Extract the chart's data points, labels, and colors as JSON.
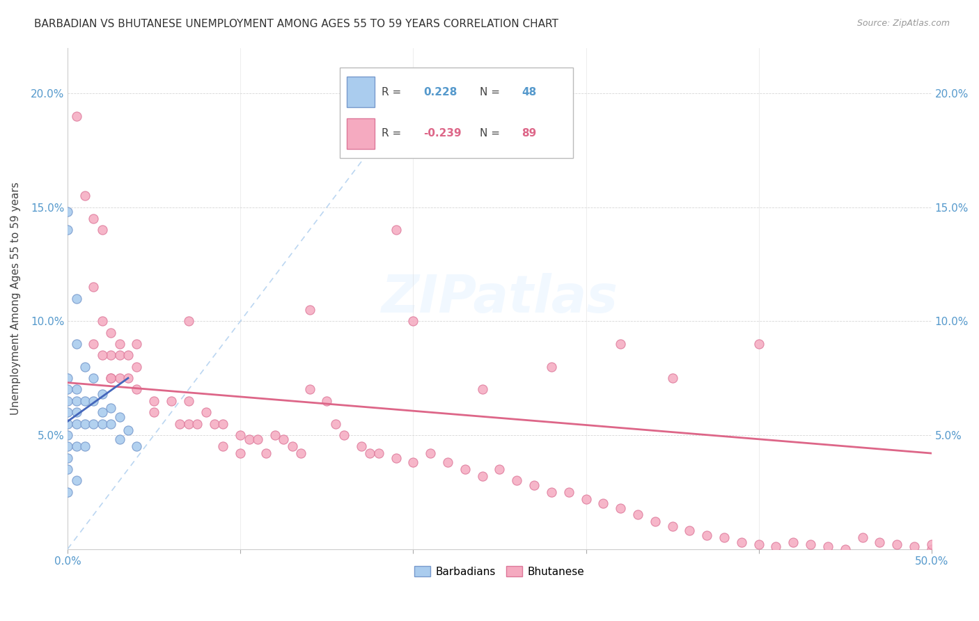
{
  "title": "BARBADIAN VS BHUTANESE UNEMPLOYMENT AMONG AGES 55 TO 59 YEARS CORRELATION CHART",
  "source": "Source: ZipAtlas.com",
  "ylabel": "Unemployment Among Ages 55 to 59 years",
  "xlim": [
    0,
    0.5
  ],
  "ylim": [
    0,
    0.22
  ],
  "barbadian_color": "#aaccee",
  "barbadian_edge": "#7799cc",
  "bhutanese_color": "#f5aac0",
  "bhutanese_edge": "#dd7799",
  "barbadian_line_color": "#4466bb",
  "bhutanese_line_color": "#dd6688",
  "watermark": "ZIPatlas",
  "background_color": "#ffffff",
  "barbadian_x": [
    0.0,
    0.0,
    0.0,
    0.0,
    0.0,
    0.0,
    0.0,
    0.0,
    0.0,
    0.0,
    0.0,
    0.0,
    0.005,
    0.005,
    0.005,
    0.005,
    0.005,
    0.005,
    0.005,
    0.005,
    0.01,
    0.01,
    0.01,
    0.01,
    0.015,
    0.015,
    0.015,
    0.02,
    0.02,
    0.02,
    0.025,
    0.025,
    0.03,
    0.03,
    0.035,
    0.04
  ],
  "barbadian_y": [
    0.148,
    0.14,
    0.075,
    0.07,
    0.065,
    0.06,
    0.055,
    0.05,
    0.045,
    0.04,
    0.035,
    0.025,
    0.11,
    0.09,
    0.07,
    0.065,
    0.06,
    0.055,
    0.045,
    0.03,
    0.08,
    0.065,
    0.055,
    0.045,
    0.075,
    0.065,
    0.055,
    0.068,
    0.06,
    0.055,
    0.062,
    0.055,
    0.058,
    0.048,
    0.052,
    0.045
  ],
  "bhutanese_x": [
    0.005,
    0.01,
    0.015,
    0.015,
    0.02,
    0.02,
    0.025,
    0.025,
    0.025,
    0.03,
    0.03,
    0.03,
    0.035,
    0.035,
    0.04,
    0.04,
    0.04,
    0.05,
    0.05,
    0.06,
    0.065,
    0.07,
    0.07,
    0.075,
    0.08,
    0.085,
    0.09,
    0.09,
    0.1,
    0.1,
    0.105,
    0.11,
    0.115,
    0.12,
    0.125,
    0.13,
    0.135,
    0.14,
    0.15,
    0.155,
    0.16,
    0.17,
    0.175,
    0.18,
    0.19,
    0.2,
    0.21,
    0.22,
    0.23,
    0.24,
    0.25,
    0.26,
    0.27,
    0.28,
    0.29,
    0.3,
    0.31,
    0.32,
    0.33,
    0.34,
    0.35,
    0.36,
    0.37,
    0.38,
    0.39,
    0.4,
    0.41,
    0.42,
    0.43,
    0.44,
    0.45,
    0.46,
    0.47,
    0.48,
    0.49,
    0.5,
    0.5,
    0.015,
    0.02,
    0.025,
    0.19,
    0.07,
    0.24,
    0.14,
    0.32,
    0.2,
    0.28,
    0.35,
    0.4
  ],
  "bhutanese_y": [
    0.19,
    0.155,
    0.145,
    0.115,
    0.14,
    0.1,
    0.095,
    0.085,
    0.075,
    0.09,
    0.085,
    0.075,
    0.085,
    0.075,
    0.09,
    0.08,
    0.07,
    0.065,
    0.06,
    0.065,
    0.055,
    0.065,
    0.055,
    0.055,
    0.06,
    0.055,
    0.055,
    0.045,
    0.05,
    0.042,
    0.048,
    0.048,
    0.042,
    0.05,
    0.048,
    0.045,
    0.042,
    0.07,
    0.065,
    0.055,
    0.05,
    0.045,
    0.042,
    0.042,
    0.04,
    0.038,
    0.042,
    0.038,
    0.035,
    0.032,
    0.035,
    0.03,
    0.028,
    0.025,
    0.025,
    0.022,
    0.02,
    0.018,
    0.015,
    0.012,
    0.01,
    0.008,
    0.006,
    0.005,
    0.003,
    0.002,
    0.001,
    0.003,
    0.002,
    0.001,
    0.0,
    0.005,
    0.003,
    0.002,
    0.001,
    0.0,
    0.002,
    0.09,
    0.085,
    0.075,
    0.14,
    0.1,
    0.07,
    0.105,
    0.09,
    0.1,
    0.08,
    0.075,
    0.09
  ],
  "barbadian_trend_x": [
    0.0,
    0.035
  ],
  "barbadian_trend_y": [
    0.056,
    0.075
  ],
  "bhutanese_trend_x": [
    0.0,
    0.5
  ],
  "bhutanese_trend_y": [
    0.073,
    0.042
  ]
}
